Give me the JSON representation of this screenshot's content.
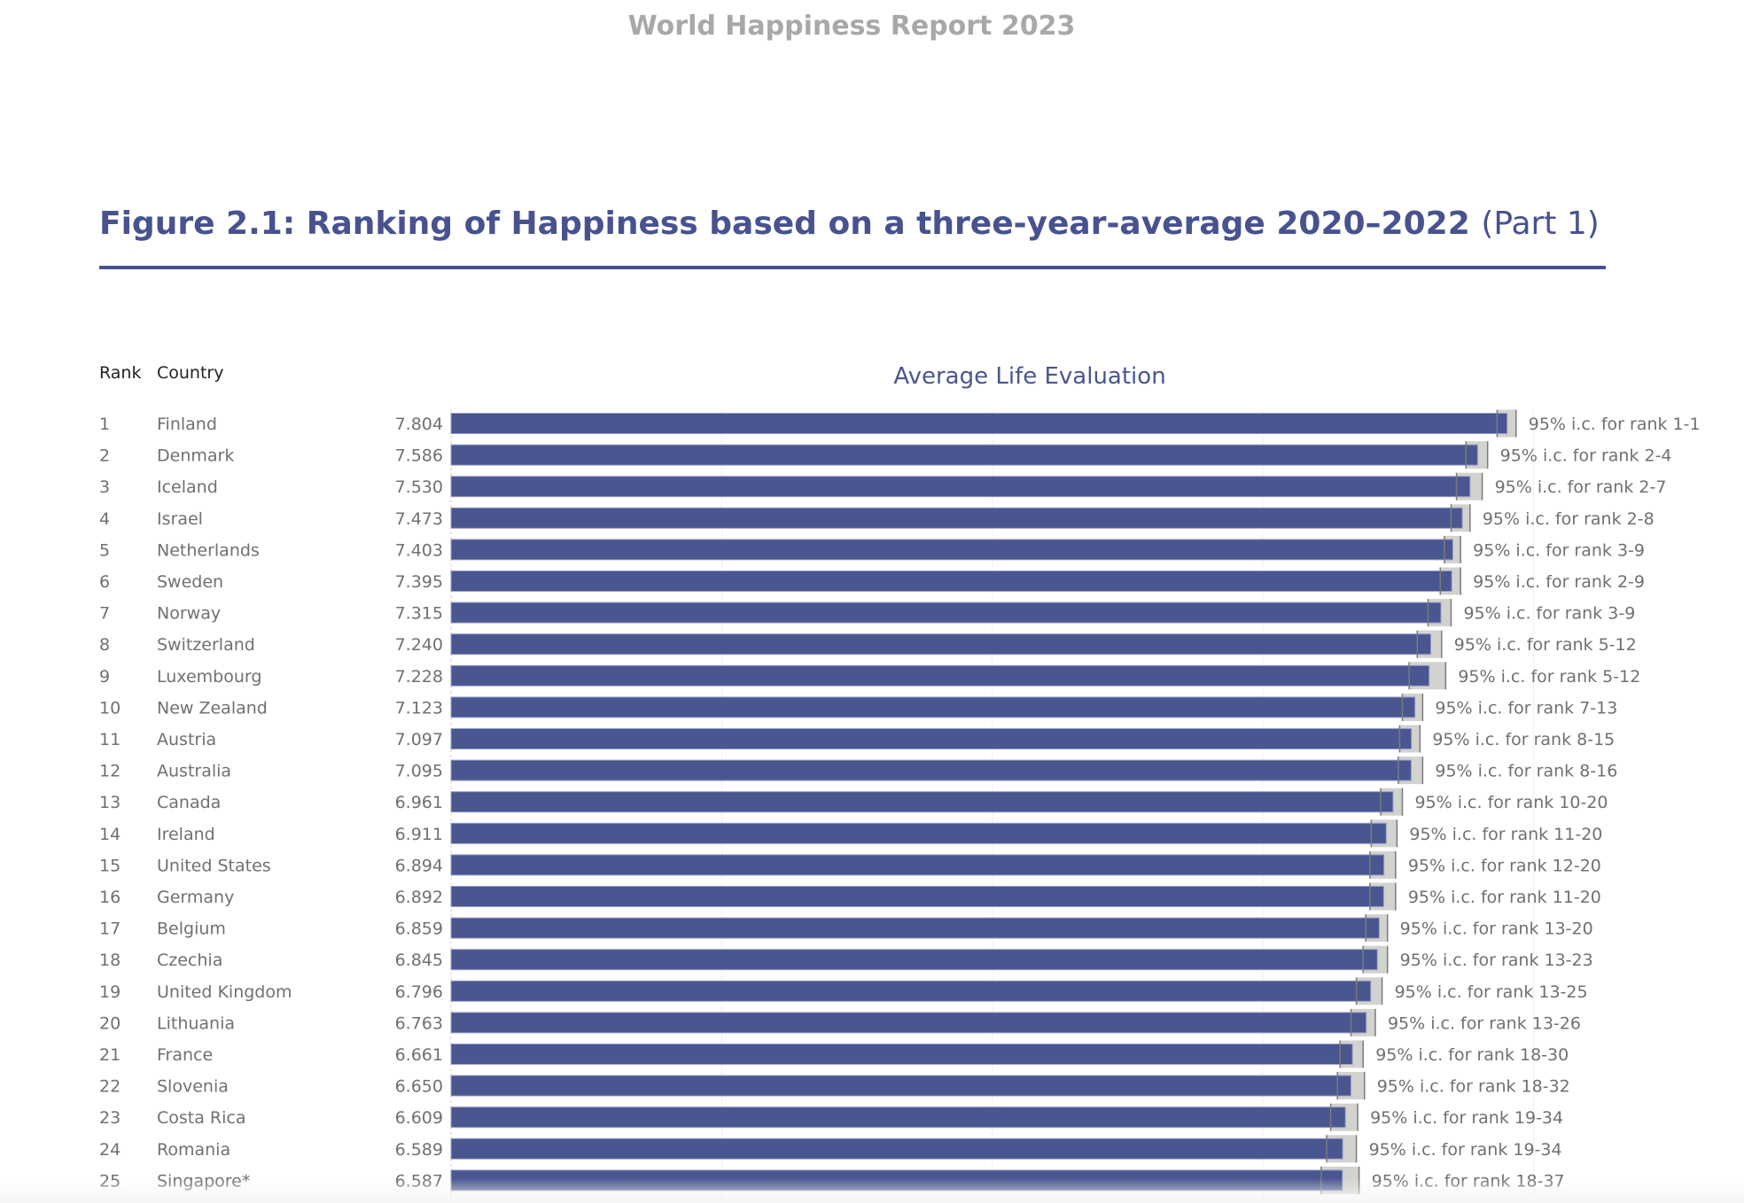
{
  "header": {
    "report_title": "World Happiness Report 2023"
  },
  "figure": {
    "title": "Figure 2.1: Ranking of Happiness based on a three-year-average 2020–2022",
    "part": "(Part 1)"
  },
  "chart_data": {
    "type": "bar",
    "orientation": "horizontal",
    "title": "Average Life Evaluation",
    "column_headers": {
      "rank": "Rank",
      "country": "Country"
    },
    "xlim": [
      0,
      8
    ],
    "gridlines_at": [
      2,
      4,
      6,
      8
    ],
    "colors": {
      "bar": "#4a5690",
      "ci": "#d2d2ce",
      "ci_line": "#7a7a7a",
      "label": "#707070"
    },
    "rows": [
      {
        "rank": "1",
        "country": "Finland",
        "value": 7.804,
        "value_label": "7.804",
        "ci": [
          7.73,
          7.87
        ],
        "ci_label": "95% i.c. for rank 1-1"
      },
      {
        "rank": "2",
        "country": "Denmark",
        "value": 7.586,
        "value_label": "7.586",
        "ci": [
          7.5,
          7.66
        ],
        "ci_label": "95% i.c. for rank 2-4"
      },
      {
        "rank": "3",
        "country": "Iceland",
        "value": 7.53,
        "value_label": "7.530",
        "ci": [
          7.43,
          7.62
        ],
        "ci_label": "95% i.c. for rank 2-7"
      },
      {
        "rank": "4",
        "country": "Israel",
        "value": 7.473,
        "value_label": "7.473",
        "ci": [
          7.39,
          7.53
        ],
        "ci_label": "95% i.c. for rank 2-8"
      },
      {
        "rank": "5",
        "country": "Netherlands",
        "value": 7.403,
        "value_label": "7.403",
        "ci": [
          7.34,
          7.46
        ],
        "ci_label": "95% i.c. for rank 3-9"
      },
      {
        "rank": "6",
        "country": "Sweden",
        "value": 7.395,
        "value_label": "7.395",
        "ci": [
          7.31,
          7.46
        ],
        "ci_label": "95% i.c. for rank 2-9"
      },
      {
        "rank": "7",
        "country": "Norway",
        "value": 7.315,
        "value_label": "7.315",
        "ci": [
          7.22,
          7.39
        ],
        "ci_label": "95% i.c. for rank 3-9"
      },
      {
        "rank": "8",
        "country": "Switzerland",
        "value": 7.24,
        "value_label": "7.240",
        "ci": [
          7.14,
          7.32
        ],
        "ci_label": "95% i.c. for rank 5-12"
      },
      {
        "rank": "9",
        "country": "Luxembourg",
        "value": 7.228,
        "value_label": "7.228",
        "ci": [
          7.08,
          7.35
        ],
        "ci_label": "95% i.c. for rank 5-12"
      },
      {
        "rank": "10",
        "country": "New Zealand",
        "value": 7.123,
        "value_label": "7.123",
        "ci": [
          7.03,
          7.18
        ],
        "ci_label": "95% i.c. for rank 7-13"
      },
      {
        "rank": "11",
        "country": "Austria",
        "value": 7.097,
        "value_label": "7.097",
        "ci": [
          7.01,
          7.16
        ],
        "ci_label": "95% i.c. for rank 8-15"
      },
      {
        "rank": "12",
        "country": "Australia",
        "value": 7.095,
        "value_label": "7.095",
        "ci": [
          7.0,
          7.18
        ],
        "ci_label": "95% i.c. for rank 8-16"
      },
      {
        "rank": "13",
        "country": "Canada",
        "value": 6.961,
        "value_label": "6.961",
        "ci": [
          6.87,
          7.03
        ],
        "ci_label": "95% i.c. for rank 10-20"
      },
      {
        "rank": "14",
        "country": "Ireland",
        "value": 6.911,
        "value_label": "6.911",
        "ci": [
          6.8,
          6.99
        ],
        "ci_label": "95% i.c. for rank 11-20"
      },
      {
        "rank": "15",
        "country": "United States",
        "value": 6.894,
        "value_label": "6.894",
        "ci": [
          6.79,
          6.98
        ],
        "ci_label": "95% i.c. for rank 12-20"
      },
      {
        "rank": "16",
        "country": "Germany",
        "value": 6.892,
        "value_label": "6.892",
        "ci": [
          6.79,
          6.98
        ],
        "ci_label": "95% i.c. for rank 11-20"
      },
      {
        "rank": "17",
        "country": "Belgium",
        "value": 6.859,
        "value_label": "6.859",
        "ci": [
          6.76,
          6.92
        ],
        "ci_label": "95% i.c. for rank 13-20"
      },
      {
        "rank": "18",
        "country": "Czechia",
        "value": 6.845,
        "value_label": "6.845",
        "ci": [
          6.74,
          6.92
        ],
        "ci_label": "95% i.c. for rank 13-23"
      },
      {
        "rank": "19",
        "country": "United Kingdom",
        "value": 6.796,
        "value_label": "6.796",
        "ci": [
          6.69,
          6.88
        ],
        "ci_label": "95% i.c. for rank 13-25"
      },
      {
        "rank": "20",
        "country": "Lithuania",
        "value": 6.763,
        "value_label": "6.763",
        "ci": [
          6.65,
          6.83
        ],
        "ci_label": "95% i.c. for rank 13-26"
      },
      {
        "rank": "21",
        "country": "France",
        "value": 6.661,
        "value_label": "6.661",
        "ci": [
          6.57,
          6.74
        ],
        "ci_label": "95% i.c. for rank 18-30"
      },
      {
        "rank": "22",
        "country": "Slovenia",
        "value": 6.65,
        "value_label": "6.650",
        "ci": [
          6.55,
          6.75
        ],
        "ci_label": "95% i.c. for rank 18-32"
      },
      {
        "rank": "23",
        "country": "Costa Rica",
        "value": 6.609,
        "value_label": "6.609",
        "ci": [
          6.5,
          6.7
        ],
        "ci_label": "95% i.c. for rank 19-34"
      },
      {
        "rank": "24",
        "country": "Romania",
        "value": 6.589,
        "value_label": "6.589",
        "ci": [
          6.47,
          6.69
        ],
        "ci_label": "95% i.c. for rank 19-34"
      },
      {
        "rank": "25",
        "country": "Singapore*",
        "value": 6.587,
        "value_label": "6.587",
        "ci": [
          6.43,
          6.71
        ],
        "ci_label": "95% i.c. for rank 18-37"
      }
    ]
  }
}
